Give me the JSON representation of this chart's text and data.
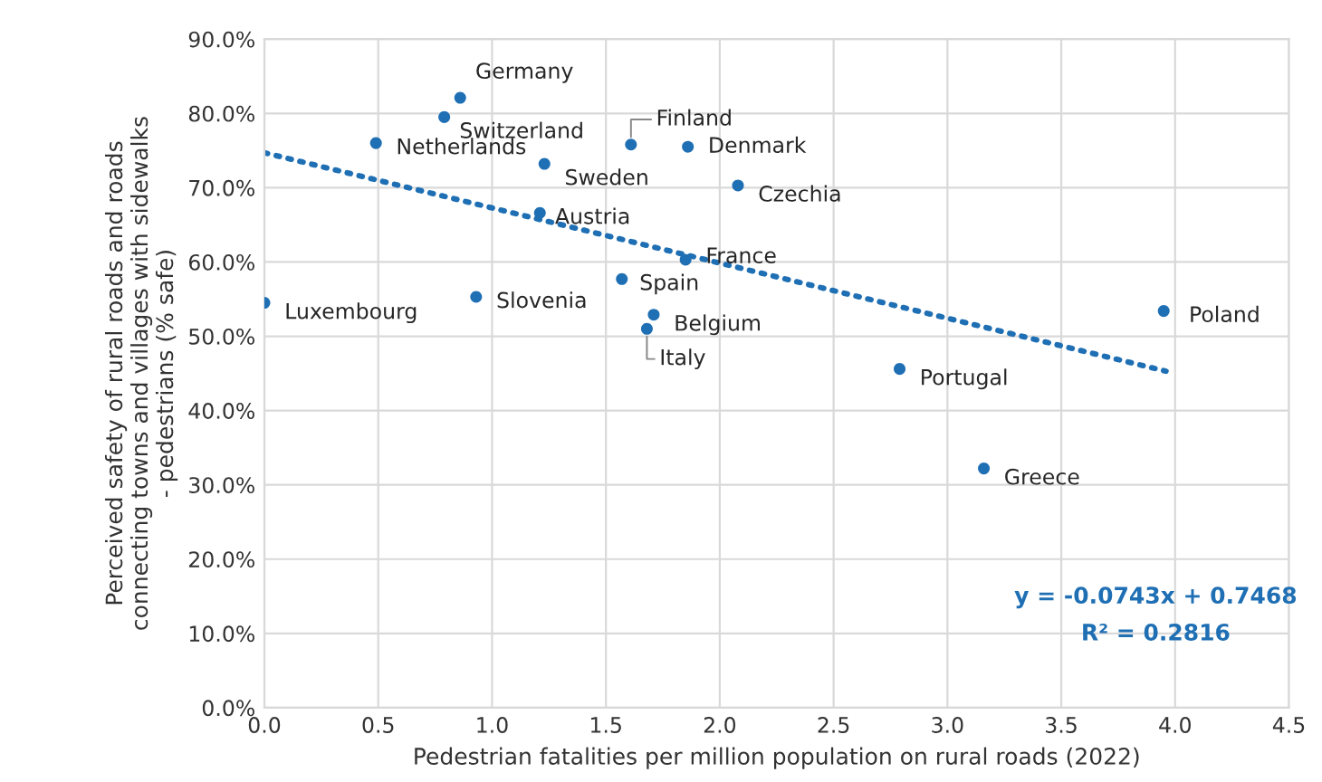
{
  "chart_data": {
    "type": "scatter",
    "xlabel": "Pedestrian fatalities per million population on rural roads (2022)",
    "ylabel": "Perceived safety of rural roads and roads connecting towns and villages with sidewalks - pedestrians (% safe)",
    "xlim": [
      0,
      4.5
    ],
    "xticks": [
      {
        "value": 0,
        "label": "0.0"
      },
      {
        "value": 0.5,
        "label": "0.5"
      },
      {
        "value": 1,
        "label": "1.0"
      },
      {
        "value": 1.5,
        "label": "1.5"
      },
      {
        "value": 2,
        "label": "2.0"
      },
      {
        "value": 2.5,
        "label": "2.5"
      },
      {
        "value": 3,
        "label": "3.0"
      },
      {
        "value": 3.5,
        "label": "3.5"
      },
      {
        "value": 4,
        "label": "4.0"
      },
      {
        "value": 4.5,
        "label": "4.5"
      }
    ],
    "ylim": [
      0,
      90
    ],
    "yticks": [
      {
        "value": 0,
        "label": "0.0%"
      },
      {
        "value": 10,
        "label": "10.0%"
      },
      {
        "value": 20,
        "label": "20.0%"
      },
      {
        "value": 30,
        "label": "30.0%"
      },
      {
        "value": 40,
        "label": "40.0%"
      },
      {
        "value": 50,
        "label": "50.0%"
      },
      {
        "value": 60,
        "label": "60.0%"
      },
      {
        "value": 70,
        "label": "70.0%"
      },
      {
        "value": 80,
        "label": "80.0%"
      },
      {
        "value": 90,
        "label": "90.0%"
      }
    ],
    "grid": true,
    "marker": "circle",
    "series": [
      {
        "color": "#1f6fb4",
        "x": [
          0.0,
          0.93,
          0.49,
          0.79,
          0.86,
          1.23,
          1.21,
          1.61,
          1.57,
          1.71,
          1.68,
          1.86,
          2.08,
          1.85,
          3.95,
          2.79,
          3.16
        ],
        "values": [
          54.5,
          55.3,
          76.0,
          79.5,
          82.1,
          73.2,
          66.6,
          75.8,
          57.7,
          52.9,
          51.0,
          75.5,
          70.3,
          60.3,
          53.4,
          45.6,
          32.2
        ]
      },
      {
        "type": "line",
        "marker": "none",
        "color": "#1f6fb4",
        "line_style": "dotted",
        "x": [
          0,
          3.96
        ],
        "values": [
          74.7,
          45.3
        ]
      }
    ],
    "annotations": [
      {
        "text": "Luxembourg",
        "x": 0.0,
        "y": 54.5
      },
      {
        "text": "Slovenia",
        "x": 0.93,
        "y": 55.3
      },
      {
        "text": "Netherlands",
        "x": 0.49,
        "y": 76.0
      },
      {
        "text": "Switzerland",
        "x": 0.79,
        "y": 79.5
      },
      {
        "text": "Germany",
        "x": 0.86,
        "y": 82.1
      },
      {
        "text": "Sweden",
        "x": 1.23,
        "y": 73.2
      },
      {
        "text": "Austria",
        "x": 1.21,
        "y": 66.6
      },
      {
        "text": "Finland",
        "x": 1.61,
        "y": 75.8
      },
      {
        "text": "Spain",
        "x": 1.57,
        "y": 57.7
      },
      {
        "text": "Belgium",
        "x": 1.71,
        "y": 52.9
      },
      {
        "text": "Italy",
        "x": 1.68,
        "y": 51.0
      },
      {
        "text": "Denmark",
        "x": 1.86,
        "y": 75.5
      },
      {
        "text": "Czechia",
        "x": 2.08,
        "y": 70.3
      },
      {
        "text": "France",
        "x": 1.85,
        "y": 60.3
      },
      {
        "text": "Poland",
        "x": 3.95,
        "y": 53.4
      },
      {
        "text": "Portugal",
        "x": 2.79,
        "y": 45.6
      },
      {
        "text": "Greece",
        "x": 3.16,
        "y": 32.2
      },
      "y = -0.0743x + 0.7468",
      "R² = 0.2816"
    ]
  }
}
